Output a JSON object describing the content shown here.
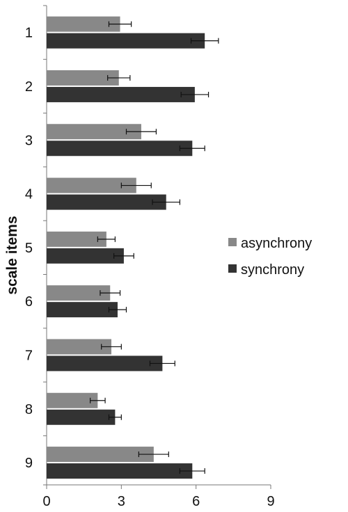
{
  "chart_data": {
    "type": "bar",
    "orientation": "horizontal",
    "title": "",
    "xlabel": "",
    "ylabel": "scale items",
    "categories": [
      "1",
      "2",
      "3",
      "4",
      "5",
      "6",
      "7",
      "8",
      "9"
    ],
    "xlim": [
      0,
      9
    ],
    "xticks": [
      "0",
      "3",
      "6",
      "9"
    ],
    "grid": false,
    "legend_position": "right",
    "series": [
      {
        "name": "asynchrony",
        "color": "#888888",
        "values": [
          2.95,
          2.9,
          3.8,
          3.6,
          2.4,
          2.55,
          2.6,
          2.05,
          4.3
        ],
        "errors": [
          0.45,
          0.45,
          0.6,
          0.6,
          0.35,
          0.4,
          0.4,
          0.3,
          0.6
        ]
      },
      {
        "name": "synchrony",
        "color": "#333333",
        "values": [
          6.35,
          5.95,
          5.85,
          4.8,
          3.1,
          2.85,
          4.65,
          2.75,
          5.85
        ],
        "errors": [
          0.55,
          0.55,
          0.5,
          0.55,
          0.4,
          0.35,
          0.5,
          0.25,
          0.5
        ]
      }
    ]
  }
}
